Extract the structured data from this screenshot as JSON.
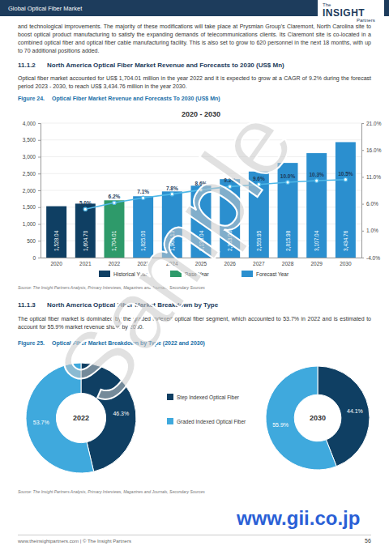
{
  "header": {
    "title": "Global Optical Fiber Market",
    "logo": [
      "The",
      "INSIGHT",
      "Partners"
    ]
  },
  "paragraphs": [
    "and technological improvements. The majority of these modifications will take place at Prysmian Group's Claremont, North Carolina site to boost optical product manufacturing to satisfy the expanding demands of telecommunications clients. Its Claremont site is co-located in a combined optical fiber and optical fiber cable manufacturing facility. This is also set to grow to 620 personnel in the next 18 months, with up to 70 additional positions added.",
    "Optical fiber market accounted for US$ 1,704.01 million in the year 2022 and it is expected to grow at a CAGR of 9.2% during the forecast period 2023 - 2030, to reach US$ 3,434.76 million in the year 2030.",
    "The optical fiber market is dominated by the graded indexed optical fiber segment, which accounted to 53.7% in 2022 and is estimated to account for 55.9% market revenue share by 2030."
  ],
  "sections": [
    {
      "number": "11.1.2",
      "title": "North America Optical Fiber Market Revenue and Forecasts to 2030 (US$ Mn)"
    },
    {
      "number": "11.1.3",
      "title": "North America Optical Fiber Market Breakdown by Type"
    }
  ],
  "figures": [
    {
      "number": "Figure 24.",
      "caption": "Optical Fiber Market Revenue and Forecasts To 2030 (US$ Mn)",
      "source": "Source: The Insight Partners Analysis, Primary Interviews, Magazines and Journals, Secondary Sources"
    },
    {
      "number": "Figure 25.",
      "caption": "Optical Fiber Market Breakdown by Type (2022 and 2030)",
      "source": "Source: The Insight Partners Analysis, Primary Interviews, Magazines and Journals, Secondary Sources"
    }
  ],
  "chart_data": [
    {
      "type": "bar",
      "title": "2020 - 2030",
      "categories": [
        "2020",
        "2021",
        "2022",
        "2023",
        "2024",
        "2025",
        "2026",
        "2027",
        "2028",
        "2029",
        "2030"
      ],
      "series": [
        {
          "name": "Historical Year",
          "color": "#0f3f63",
          "values": [
            1528.04,
            1604.7,
            null,
            null,
            null,
            null,
            null,
            null,
            null,
            null,
            null
          ],
          "value_labels": [
            "1,528.04",
            "1,604.70",
            null,
            null,
            null,
            null,
            null,
            null,
            null,
            null,
            null
          ]
        },
        {
          "name": "Base Year",
          "color": "#2e9a6a",
          "values": [
            null,
            null,
            1704.01,
            null,
            null,
            null,
            null,
            null,
            null,
            null,
            null
          ],
          "value_labels": [
            null,
            null,
            "1,704.01",
            null,
            null,
            null,
            null,
            null,
            null,
            null,
            null
          ]
        },
        {
          "name": "Forecast Year",
          "color": "#2b8fcf",
          "values": [
            null,
            null,
            null,
            1825.0,
            1968.13,
            2138.04,
            2333.0,
            2559.95,
            2815.98,
            3107.04,
            3434.76
          ],
          "value_labels": [
            null,
            null,
            null,
            "1,825.00",
            "1,968.13",
            "2,138.04",
            "2,333.00",
            "2,559.95",
            "2,815.98",
            "3,107.04",
            "3,434.76"
          ]
        },
        {
          "type": "line",
          "axis": "y2",
          "color": "#4fb8e8",
          "marker": "circle",
          "values": [
            null,
            5.0,
            6.2,
            7.1,
            7.8,
            8.6,
            9.2,
            9.6,
            10.0,
            10.3,
            10.5
          ],
          "value_labels": [
            null,
            "5.0%",
            "6.2%",
            "7.1%",
            "7.8%",
            "8.6%",
            "9.2%",
            "9.6%",
            "10.0%",
            "10.3%",
            "10.5%"
          ]
        }
      ],
      "ylim": [
        0,
        4000
      ],
      "yticks": [
        0,
        500,
        {
          "value": 1000,
          "label": "1,000"
        },
        {
          "value": 1500,
          "label": "1,500"
        },
        {
          "value": 2000,
          "label": "2,000"
        },
        {
          "value": 2500,
          "label": "2,500"
        },
        {
          "value": 3000,
          "label": "3,000"
        },
        {
          "value": 3500,
          "label": "3,500"
        },
        {
          "value": 4000,
          "label": "4,000"
        }
      ],
      "y2lim": [
        -4,
        21
      ],
      "y2ticks": [
        {
          "value": -4,
          "label": "-4.0%"
        },
        {
          "value": 1,
          "label": "1.0%"
        },
        {
          "value": 6,
          "label": "6.0%"
        },
        {
          "value": 11,
          "label": "11.0%"
        },
        {
          "value": 16,
          "label": "16.0%"
        },
        {
          "value": 21,
          "label": "21.0%"
        }
      ],
      "grid": true,
      "data_labels": true,
      "legend": "bottom"
    },
    {
      "type": "pie",
      "title": "2022",
      "categories": [
        "Step Indexed Optical Fiber",
        "Graded Indexed Optical Fiber"
      ],
      "values": [
        46.3,
        53.7
      ],
      "value_labels": [
        "46.3%",
        "53.7%"
      ],
      "colors": [
        "#0f3f63",
        "#3fa9dd"
      ],
      "data_labels": true,
      "legend": "right"
    },
    {
      "type": "pie",
      "title": "2030",
      "values": [
        44.1,
        55.9
      ],
      "value_labels": [
        "44.1%",
        "55.9%"
      ],
      "colors": [
        "#0f3f63",
        "#3fa9dd"
      ],
      "data_labels": true
    }
  ],
  "watermark": "Sample",
  "stamp": "www.gii.co.jp",
  "footer": {
    "text": "www.theinsightpartners.com | © The Insight Partners",
    "page": "56"
  }
}
